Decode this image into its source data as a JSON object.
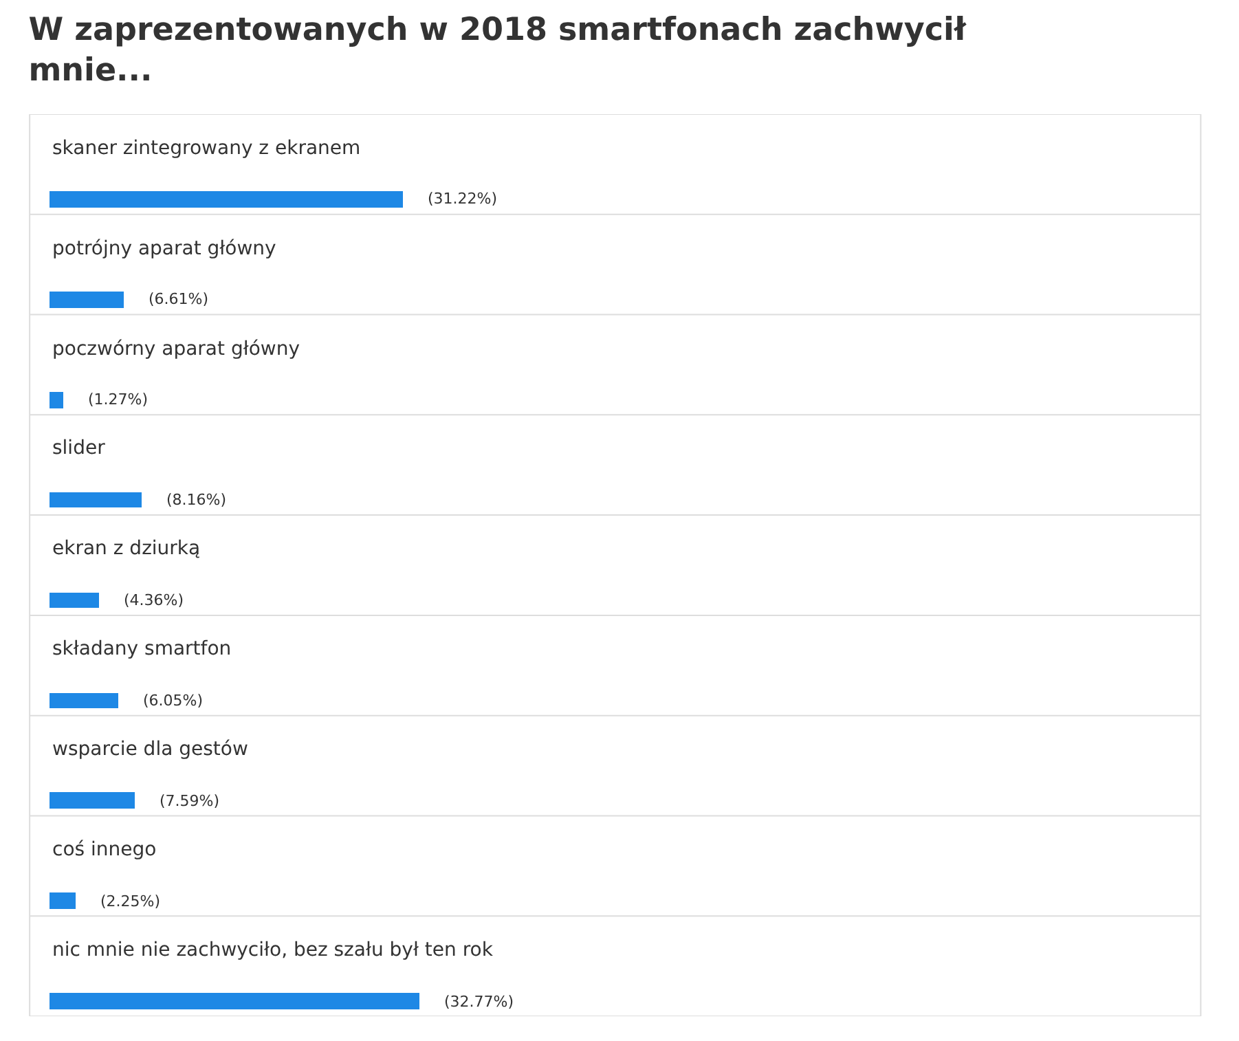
{
  "chart_data": {
    "type": "bar",
    "orientation": "horizontal",
    "title": "W zaprezentowanych w 2018 smartfonach zachwycił mnie...",
    "categories": [
      "skaner zintegrowany z ekranem",
      "potrójny aparat główny",
      "poczwórny aparat główny",
      "slider",
      "ekran z dziurką",
      "składany smartfon",
      "wsparcie dla gestów",
      "coś innego",
      "nic mnie nie zachwyciło, bez szału był ten rok"
    ],
    "values": [
      31.22,
      6.61,
      1.27,
      8.16,
      4.36,
      6.05,
      7.59,
      2.25,
      32.77
    ],
    "value_labels": [
      "(31.22%)",
      "(6.61%)",
      "(1.27%)",
      "(8.16%)",
      "(4.36%)",
      "(6.05%)",
      "(7.59%)",
      "(2.25%)",
      "(32.77%)"
    ],
    "color": "#1e88e5"
  }
}
